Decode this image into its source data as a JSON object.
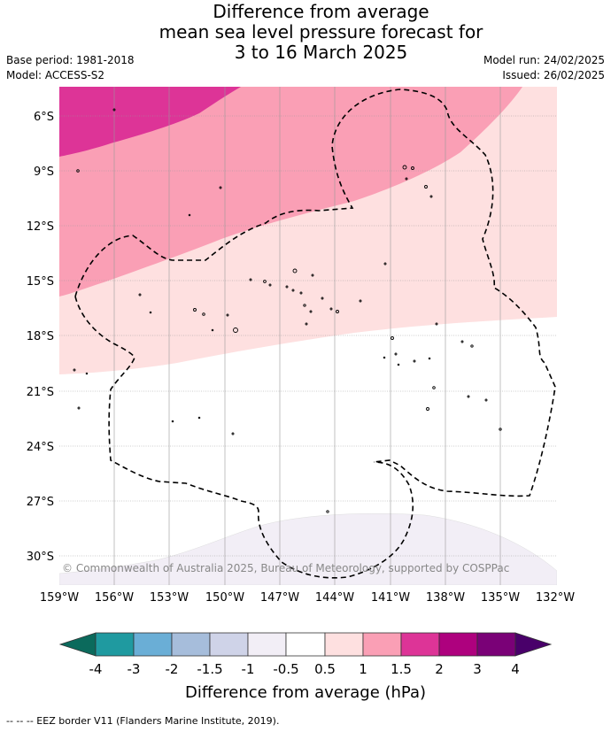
{
  "title": {
    "line1": "Difference from average",
    "line2": "mean sea level pressure forecast for",
    "line3": "3 to 16 March 2025"
  },
  "meta": {
    "base_period": "Base period: 1981-2018",
    "model": "Model: ACCESS-S2",
    "model_run": "Model run: 24/02/2025",
    "issued": "Issued: 26/02/2025"
  },
  "axes": {
    "lat_labels": [
      "6°S",
      "9°S",
      "12°S",
      "15°S",
      "18°S",
      "21°S",
      "24°S",
      "27°S",
      "30°S"
    ],
    "lon_labels": [
      "159°W",
      "156°W",
      "153°W",
      "150°W",
      "147°W",
      "144°W",
      "141°W",
      "138°W",
      "135°W",
      "132°W"
    ]
  },
  "copyright": "© Commonwealth of Australia 2025, Bureau of Meteorology, supported by COSPPac",
  "colorbar": {
    "title": "Difference from average (hPa)",
    "tick_labels": [
      "-4",
      "-3",
      "-2",
      "-1.5",
      "-1",
      "-0.5",
      "0.5",
      "1",
      "1.5",
      "2",
      "3",
      "4"
    ],
    "colors": {
      "below_-4": "#0b6a5c",
      "-4_-3": "#1f9aa0",
      "-3_-2": "#6aaed6",
      "-2_-1.5": "#a6bddb",
      "-1.5_-1": "#cfd3e8",
      "-1_-0.5": "#f2eef6",
      "-0.5_0.5": "#ffffff",
      "0.5_1": "#fee0e0",
      "1_1.5": "#fa9fb5",
      "1.5_2": "#dd3497",
      "2_3": "#ae017e",
      "3_4": "#7a0177",
      "above_4": "#49006a"
    }
  },
  "legend_footer": "--  --  -- EEZ border V11 (Flanders Marine Institute, 2019)."
}
